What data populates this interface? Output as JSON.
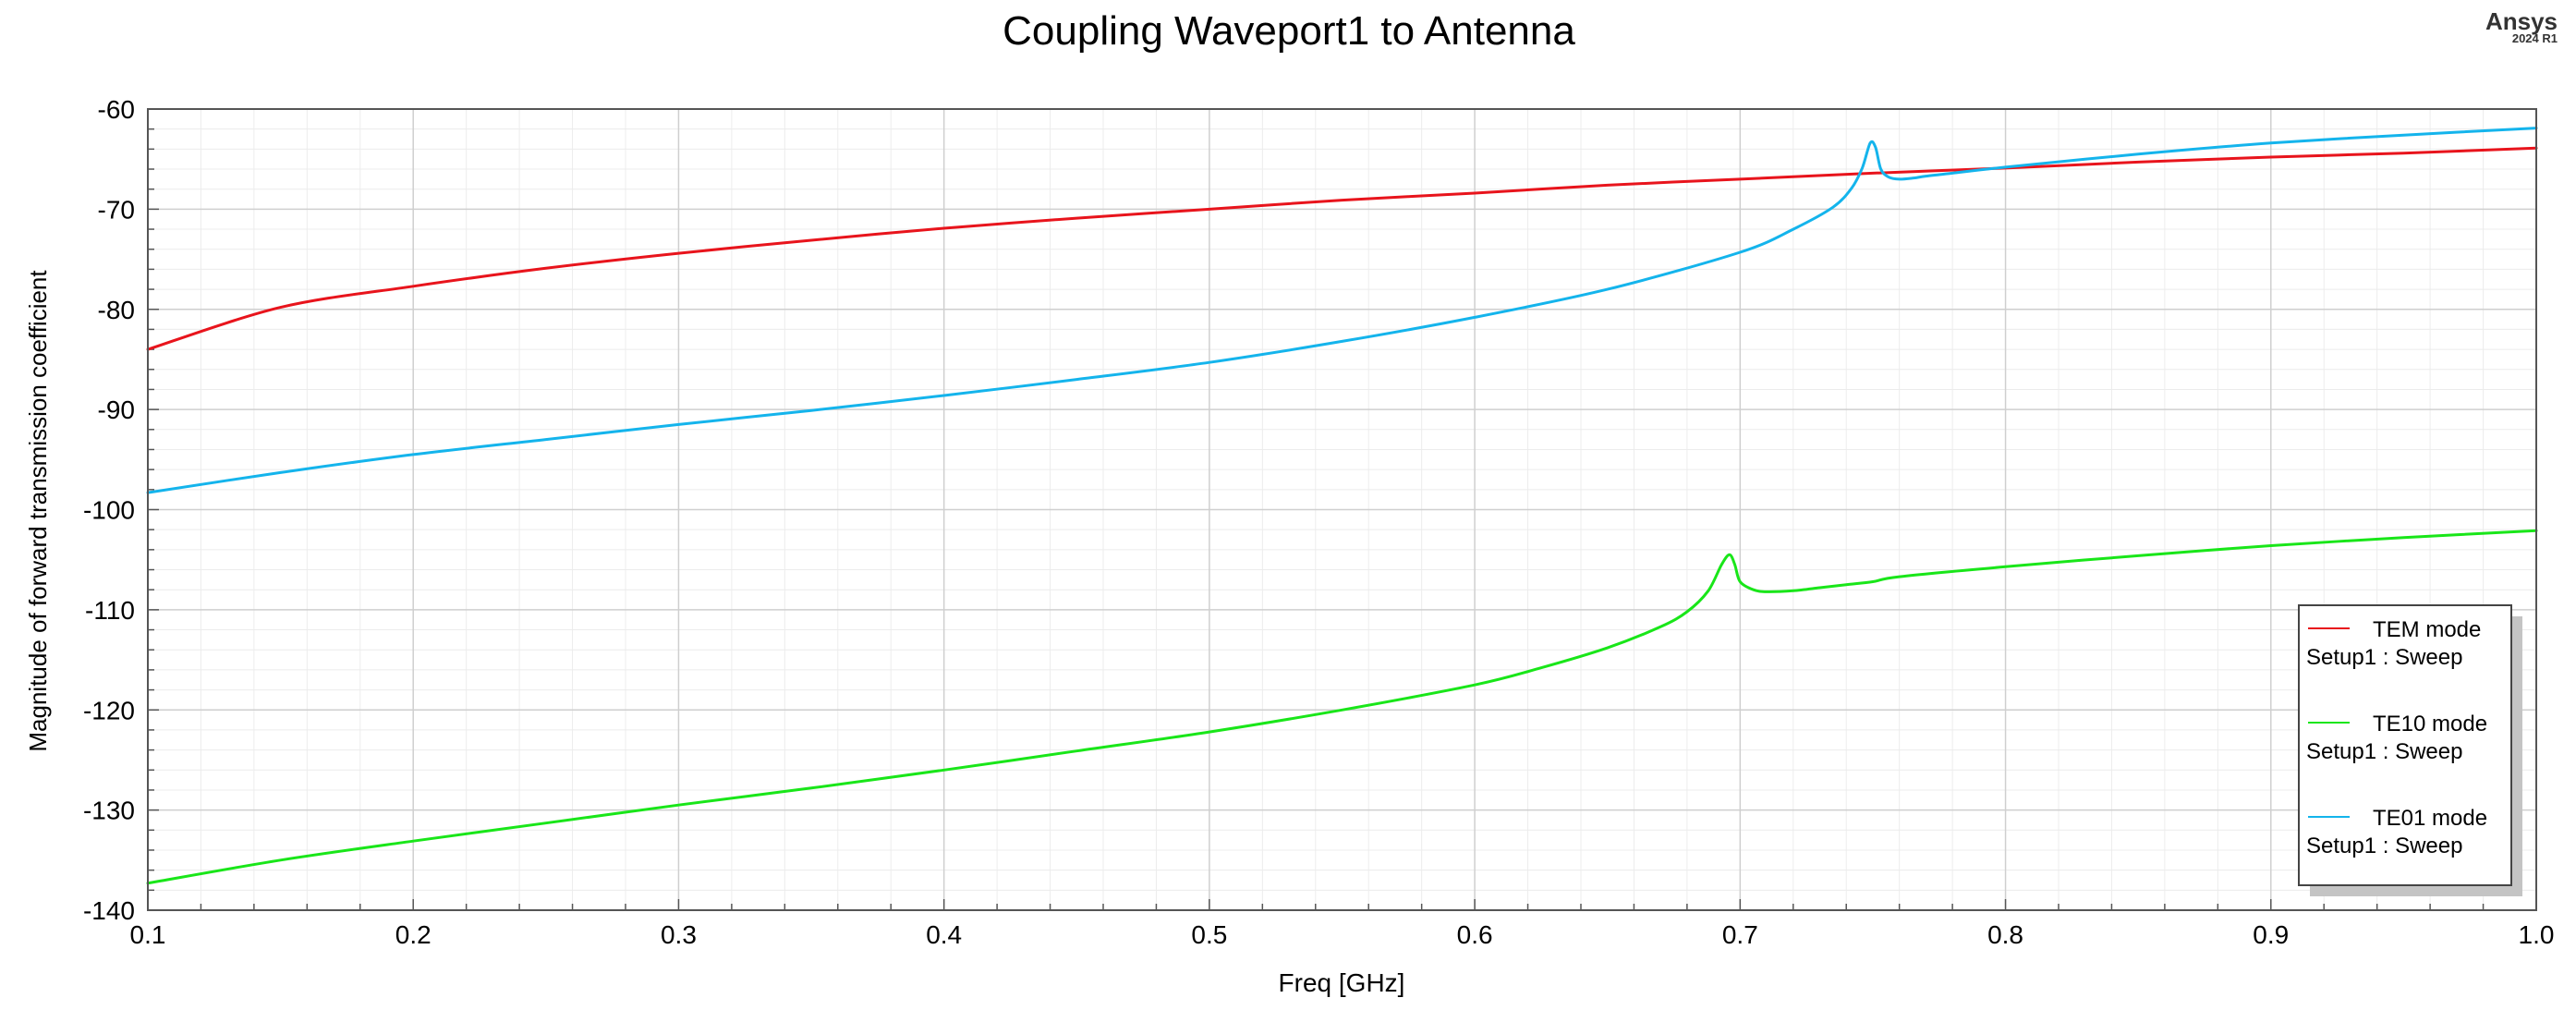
{
  "brand": {
    "name": "Ansys",
    "version": "2024 R1"
  },
  "chart_data": {
    "type": "line",
    "title": "Coupling Waveport1 to Antenna",
    "xlabel": "Freq [GHz]",
    "ylabel": "Magnitude of forward transmission coefficient",
    "xlim": [
      0.1,
      1.0
    ],
    "ylim": [
      -140,
      -60
    ],
    "x_ticks": [
      "0.1",
      "0.2",
      "0.3",
      "0.4",
      "0.5",
      "0.6",
      "0.7",
      "0.8",
      "0.9",
      "1.0"
    ],
    "y_ticks": [
      "-60",
      "-70",
      "-80",
      "-90",
      "-100",
      "-110",
      "-120",
      "-130",
      "-140"
    ],
    "grid": true,
    "legend_position": "bottom-right",
    "series": [
      {
        "name": "TEM mode",
        "subtitle": "Setup1 : Sweep",
        "color": "#e8141c",
        "x": [
          0.1,
          0.15,
          0.2,
          0.25,
          0.3,
          0.35,
          0.4,
          0.45,
          0.5,
          0.55,
          0.6,
          0.65,
          0.7,
          0.75,
          0.8,
          0.85,
          0.9,
          0.95,
          1.0
        ],
        "y": [
          -84.0,
          -79.8,
          -77.7,
          -75.9,
          -74.4,
          -73.1,
          -71.9,
          -70.9,
          -70.0,
          -69.1,
          -68.4,
          -67.6,
          -67.0,
          -66.4,
          -65.9,
          -65.3,
          -64.8,
          -64.4,
          -63.9
        ]
      },
      {
        "name": "TE10 mode",
        "subtitle": "Setup1 : Sweep",
        "color": "#19e619",
        "x": [
          0.1,
          0.15,
          0.2,
          0.25,
          0.3,
          0.35,
          0.4,
          0.45,
          0.5,
          0.55,
          0.6,
          0.625,
          0.65,
          0.67,
          0.68,
          0.688,
          0.693,
          0.696,
          0.698,
          0.7,
          0.705,
          0.71,
          0.72,
          0.73,
          0.74,
          0.75,
          0.76,
          0.8,
          0.85,
          0.9,
          0.95,
          1.0
        ],
        "y": [
          -137.3,
          -135.0,
          -133.1,
          -131.3,
          -129.5,
          -127.8,
          -126.0,
          -124.1,
          -122.2,
          -120.0,
          -117.5,
          -115.8,
          -113.8,
          -111.7,
          -110.2,
          -108.1,
          -105.5,
          -104.5,
          -105.5,
          -107.2,
          -108.0,
          -108.2,
          -108.1,
          -107.8,
          -107.5,
          -107.2,
          -106.7,
          -105.7,
          -104.6,
          -103.6,
          -102.8,
          -102.1
        ]
      },
      {
        "name": "TE01 mode",
        "subtitle": "Setup1 : Sweep",
        "color": "#14b4ec",
        "x": [
          0.1,
          0.15,
          0.2,
          0.25,
          0.3,
          0.35,
          0.4,
          0.45,
          0.5,
          0.55,
          0.6,
          0.65,
          0.7,
          0.72,
          0.735,
          0.742,
          0.746,
          0.749,
          0.751,
          0.753,
          0.756,
          0.76,
          0.765,
          0.77,
          0.78,
          0.8,
          0.85,
          0.9,
          0.95,
          1.0
        ],
        "y": [
          -98.3,
          -96.3,
          -94.5,
          -93.0,
          -91.5,
          -90.1,
          -88.6,
          -87.0,
          -85.3,
          -83.2,
          -80.8,
          -78.0,
          -74.3,
          -72.0,
          -69.8,
          -67.9,
          -65.9,
          -63.4,
          -63.8,
          -66.0,
          -66.8,
          -67.0,
          -66.9,
          -66.7,
          -66.4,
          -65.8,
          -64.5,
          -63.4,
          -62.6,
          -61.9
        ]
      }
    ]
  }
}
